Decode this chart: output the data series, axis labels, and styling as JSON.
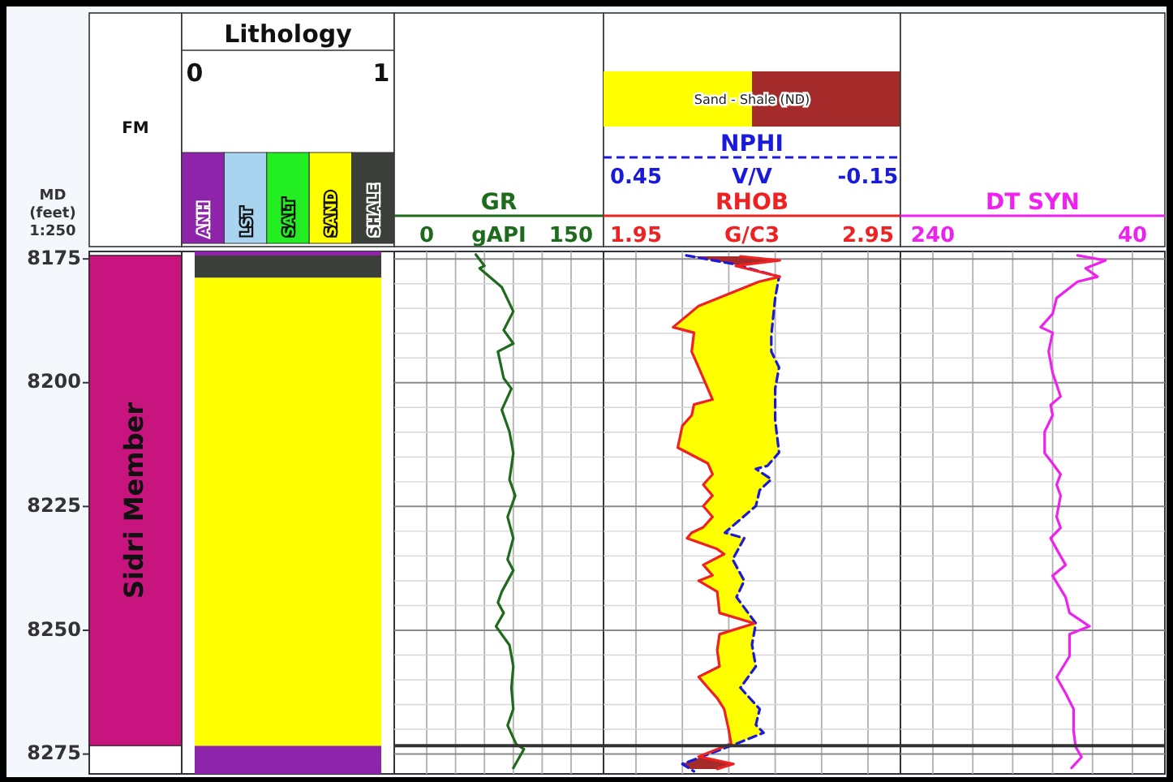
{
  "chart_data": [
    {
      "type": "bar",
      "title": "FM",
      "ylabel": "MD (feet) 1:250",
      "categories": [
        "Sidri Member"
      ],
      "base": [
        8174.3
      ],
      "values": [
        99
      ],
      "color": "#c8147f",
      "ylim": [
        8279,
        8173.5
      ],
      "yticks": [
        8175,
        8200,
        8225,
        8250,
        8275
      ]
    },
    {
      "type": "area",
      "orientation": "horizontal",
      "title": "Lithology",
      "xlim": [
        0,
        1
      ],
      "xticks": [
        0,
        1
      ],
      "ylim": [
        8279,
        8173.5
      ],
      "tick_labels": "x",
      "legend": "top",
      "series": [
        {
          "name": "ANH",
          "color": "#8e24aa",
          "x": [
            8173.5,
            8174.3,
            8174.3,
            8273.3,
            8273.3,
            8279
          ],
          "values": [
            1,
            1,
            0,
            0,
            1,
            1
          ]
        },
        {
          "name": "LST",
          "color": "#a8d4f0"
        },
        {
          "name": "SALT",
          "color": "#22ee22"
        },
        {
          "name": "SAND",
          "color": "#ffff00",
          "x": [
            8178.8,
            8273.3
          ],
          "values": [
            1,
            1
          ]
        },
        {
          "name": "SHALE",
          "color": "#3a3f3a",
          "x": [
            8174.3,
            8178.8
          ],
          "values": [
            1,
            1
          ]
        }
      ]
    },
    {
      "type": "line",
      "orientation": "horizontal",
      "xlabel": "gAPI",
      "xlim": [
        0,
        150
      ],
      "xticks": [
        0,
        {
          "value": 30,
          "label": null
        },
        {
          "value": 60,
          "label": null
        },
        {
          "value": 90,
          "label": null
        },
        {
          "value": 120,
          "label": null
        },
        150
      ],
      "ylim": [
        8279,
        8173.5
      ],
      "yticks": [
        {
          "value": 8175,
          "label": null
        },
        {
          "value": 8180,
          "label": null
        },
        {
          "value": 8185,
          "label": null
        },
        {
          "value": 8190,
          "label": null
        },
        {
          "value": 8195,
          "label": null
        },
        {
          "value": 8200,
          "label": null
        },
        {
          "value": 8205,
          "label": null
        },
        {
          "value": 8210,
          "label": null
        },
        {
          "value": 8215,
          "label": null
        },
        {
          "value": 8220,
          "label": null
        },
        {
          "value": 8225,
          "label": null
        },
        {
          "value": 8230,
          "label": null
        },
        {
          "value": 8235,
          "label": null
        },
        {
          "value": 8240,
          "label": null
        },
        {
          "value": 8245,
          "label": null
        },
        {
          "value": 8250,
          "label": null
        },
        {
          "value": 8255,
          "label": null
        },
        {
          "value": 8260,
          "label": null
        },
        {
          "value": 8265,
          "label": null
        },
        {
          "value": 8270,
          "label": null
        },
        {
          "value": 8275,
          "label": null
        }
      ],
      "tick_labels": "x",
      "grid": true,
      "legend": "top",
      "ref_lines": [
        {
          "axis": "y",
          "value": 8273.3,
          "color": "#333333"
        }
      ],
      "series": [
        {
          "name": "GR",
          "color": "#1e6b1e",
          "x": [
            8174.1,
            8176.4,
            8176.9,
            8180.7,
            8185.6,
            8189.4,
            8192.1,
            8193.7,
            8199.1,
            8201.2,
            8205.5,
            8209.9,
            8214.2,
            8219.6,
            8222.8,
            8227.1,
            8231.4,
            8235.7,
            8237.9,
            8242.2,
            8244.4,
            8246.5,
            8249.2,
            8253,
            8257.3,
            8261.6,
            8265.9,
            8269.2,
            8273,
            8274,
            8277.8
          ],
          "values": [
            51,
            60,
            55,
            78,
            90,
            80,
            90,
            74,
            80,
            88,
            78,
            86,
            90,
            86,
            92,
            84,
            90,
            84,
            90,
            78,
            74,
            80,
            72,
            86,
            90,
            88,
            90,
            84,
            93,
            101,
            90
          ]
        }
      ]
    },
    {
      "type": "line",
      "orientation": "horizontal",
      "xlabel": "G/C3",
      "xlim": [
        1.95,
        2.95
      ],
      "xticks": [
        1.95,
        {
          "value": 2.15,
          "label": null
        },
        {
          "value": 2.35,
          "label": null
        },
        {
          "value": 2.55,
          "label": null
        },
        {
          "value": 2.75,
          "label": null
        },
        2.95
      ],
      "x2label": "V/V",
      "x2lim": [
        0.45,
        -0.15
      ],
      "x2ticks": [
        0.45,
        -0.15
      ],
      "ylim": [
        8279,
        8173.5
      ],
      "yticks": [
        {
          "value": 8175,
          "label": null
        },
        {
          "value": 8180,
          "label": null
        },
        {
          "value": 8185,
          "label": null
        },
        {
          "value": 8190,
          "label": null
        },
        {
          "value": 8195,
          "label": null
        },
        {
          "value": 8200,
          "label": null
        },
        {
          "value": 8205,
          "label": null
        },
        {
          "value": 8210,
          "label": null
        },
        {
          "value": 8215,
          "label": null
        },
        {
          "value": 8220,
          "label": null
        },
        {
          "value": 8225,
          "label": null
        },
        {
          "value": 8230,
          "label": null
        },
        {
          "value": 8235,
          "label": null
        },
        {
          "value": 8240,
          "label": null
        },
        {
          "value": 8245,
          "label": null
        },
        {
          "value": 8250,
          "label": null
        },
        {
          "value": 8255,
          "label": null
        },
        {
          "value": 8260,
          "label": null
        },
        {
          "value": 8265,
          "label": null
        },
        {
          "value": 8270,
          "label": null
        },
        {
          "value": 8275,
          "label": null
        }
      ],
      "tick_labels": "x",
      "grid": true,
      "legend": "top",
      "legend_title": "Sand - Shale (ND)",
      "colors": [
        "#ffff00",
        "#a52a2a"
      ],
      "ref_lines": [
        {
          "axis": "y",
          "value": 8273.3,
          "color": "#333333"
        }
      ],
      "series": [
        {
          "name": "NPHI",
          "color": "#1a1adc",
          "axis": "x2",
          "line_style": "dashed",
          "x": [
            8174.3,
            8176,
            8178.6,
            8182.9,
            8190.4,
            8193.7,
            8196.9,
            8201.2,
            8207.6,
            8214.1,
            8216.8,
            8217.4,
            8219.5,
            8221.7,
            8224.9,
            8227.6,
            8230.3,
            8231.4,
            8235.7,
            8240,
            8243.3,
            8248.6,
            8252.9,
            8257.3,
            8261.6,
            8265.9,
            8269.1,
            8270.7,
            8272.9,
            8277,
            8278.5
          ],
          "values": [
            0.32,
            0.2,
            0.08,
            0.09,
            0.1,
            0.1,
            0.08,
            0.09,
            0.09,
            0.08,
            0.11,
            0.14,
            0.1,
            0.13,
            0.14,
            0.18,
            0.22,
            0.17,
            0.2,
            0.17,
            0.19,
            0.14,
            0.15,
            0.14,
            0.18,
            0.13,
            0.14,
            0.12,
            0.19,
            0.33,
            0.3
          ]
        },
        {
          "name": "RHOB",
          "color": "#ee2222",
          "x": [
            8174.5,
            8175.3,
            8176.4,
            8178.6,
            8179.6,
            8184.5,
            8188.8,
            8189.9,
            8193.7,
            8196.9,
            8203.4,
            8204.4,
            8206.6,
            8208.7,
            8213.1,
            8216.3,
            8218.5,
            8220.6,
            8222.8,
            8224.9,
            8227.1,
            8229.2,
            8230.3,
            8231.4,
            8233.6,
            8234.6,
            8236.8,
            8238.9,
            8240,
            8242.2,
            8246.5,
            8248.6,
            8250.8,
            8254,
            8257.3,
            8259.4,
            8261.6,
            8263.7,
            8265.9,
            8270.2,
            8272.9,
            8275.5,
            8277,
            8278
          ],
          "values": [
            2.4,
            2.57,
            2.38,
            2.57,
            2.48,
            2.22,
            2.11,
            2.2,
            2.19,
            2.22,
            2.28,
            2.2,
            2.19,
            2.15,
            2.13,
            2.26,
            2.28,
            2.24,
            2.28,
            2.24,
            2.28,
            2.24,
            2.19,
            2.17,
            2.3,
            2.33,
            2.24,
            2.28,
            2.22,
            2.3,
            2.31,
            2.46,
            2.31,
            2.3,
            2.31,
            2.22,
            2.26,
            2.3,
            2.33,
            2.35,
            2.36,
            2.22,
            2.37,
            2.3
          ]
        }
      ]
    },
    {
      "type": "line",
      "orientation": "horizontal",
      "xlim": [
        240,
        40
      ],
      "xticks": [
        240,
        {
          "value": 200,
          "label": null
        },
        {
          "value": 160,
          "label": null
        },
        {
          "value": 120,
          "label": null
        },
        {
          "value": 80,
          "label": null
        },
        40
      ],
      "ylim": [
        8279,
        8173.5
      ],
      "yticks": [
        {
          "value": 8175,
          "label": null
        },
        {
          "value": 8180,
          "label": null
        },
        {
          "value": 8185,
          "label": null
        },
        {
          "value": 8190,
          "label": null
        },
        {
          "value": 8195,
          "label": null
        },
        {
          "value": 8200,
          "label": null
        },
        {
          "value": 8205,
          "label": null
        },
        {
          "value": 8210,
          "label": null
        },
        {
          "value": 8215,
          "label": null
        },
        {
          "value": 8220,
          "label": null
        },
        {
          "value": 8225,
          "label": null
        },
        {
          "value": 8230,
          "label": null
        },
        {
          "value": 8235,
          "label": null
        },
        {
          "value": 8240,
          "label": null
        },
        {
          "value": 8245,
          "label": null
        },
        {
          "value": 8250,
          "label": null
        },
        {
          "value": 8255,
          "label": null
        },
        {
          "value": 8260,
          "label": null
        },
        {
          "value": 8265,
          "label": null
        },
        {
          "value": 8270,
          "label": null
        },
        {
          "value": 8275,
          "label": null
        }
      ],
      "tick_labels": "x",
      "grid": true,
      "legend": "top",
      "ref_lines": [
        {
          "axis": "y",
          "value": 8273.3,
          "color": "#333333"
        }
      ],
      "series": [
        {
          "name": "DT SYN",
          "color": "#ee22ee",
          "x": [
            8174.3,
            8175.3,
            8176.9,
            8178.6,
            8179.6,
            8182.9,
            8186.1,
            8188.8,
            8189.9,
            8193.7,
            8198,
            8202.8,
            8204.5,
            8206.6,
            8209.9,
            8214.2,
            8216.3,
            8218.5,
            8220.6,
            8222.8,
            8227.1,
            8229.3,
            8231.4,
            8233.6,
            8236.8,
            8239,
            8243.3,
            8246.5,
            8249.2,
            8250.8,
            8255.2,
            8259.5,
            8262.7,
            8265.9,
            8270.2,
            8273.5,
            8275.6,
            8277.8
          ],
          "values": [
            95,
            67,
            87,
            75,
            95,
            116,
            120,
            132,
            120,
            124,
            120,
            112,
            122,
            120,
            128,
            128,
            120,
            112,
            116,
            112,
            116,
            112,
            122,
            116,
            107,
            120,
            107,
            103,
            83,
            103,
            103,
            116,
            107,
            99,
            99,
            97,
            91,
            101
          ]
        }
      ]
    }
  ]
}
